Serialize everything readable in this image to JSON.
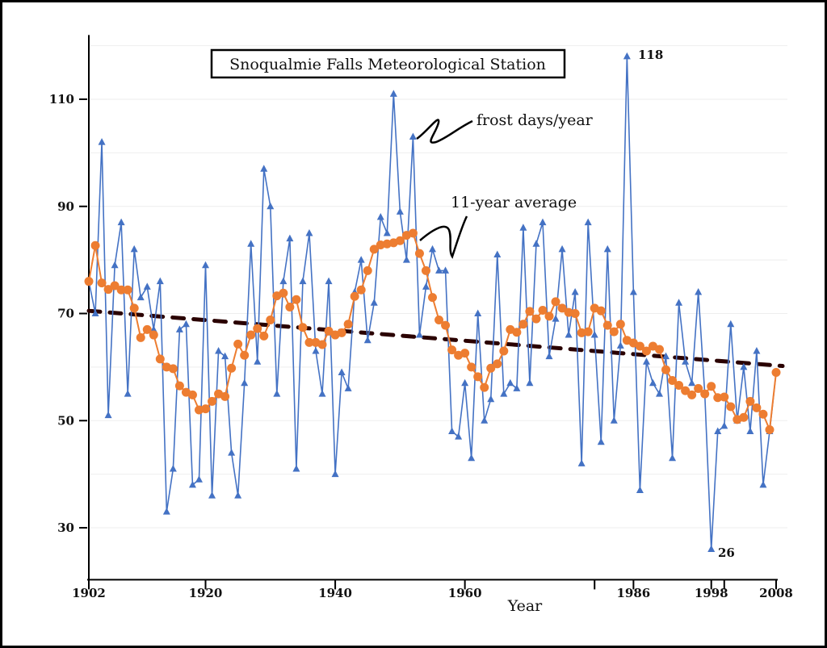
{
  "chart_data": {
    "type": "line",
    "title": "Snoqualmie Falls Meteorological Station",
    "xlabel": "Year",
    "ylabel": "",
    "xlim": [
      1902,
      2008
    ],
    "ylim": [
      20,
      125
    ],
    "x_ticks": [
      1902,
      1920,
      1940,
      1960,
      1986,
      1998,
      2008
    ],
    "y_ticks": [
      30,
      50,
      70,
      90,
      110
    ],
    "grid": true,
    "x_start": 1902,
    "series": [
      {
        "name": "frost days/year",
        "color": "#4472C4",
        "marker": "triangle",
        "values": [
          76,
          70,
          102,
          51,
          79,
          87,
          55,
          82,
          73,
          75,
          67,
          76,
          33,
          41,
          67,
          68,
          38,
          39,
          79,
          36,
          63,
          62,
          44,
          36,
          57,
          83,
          61,
          97,
          90,
          55,
          76,
          84,
          41,
          76,
          85,
          63,
          55,
          76,
          40,
          59,
          56,
          74,
          80,
          65,
          72,
          88,
          85,
          111,
          89,
          80,
          103,
          66,
          75,
          82,
          78,
          78,
          48,
          47,
          57,
          43,
          70,
          50,
          54,
          81,
          55,
          57,
          56,
          86,
          57,
          83,
          87,
          62,
          69,
          82,
          66,
          74,
          42,
          87,
          66,
          46,
          82,
          50,
          64,
          118,
          74,
          37,
          61,
          57,
          55,
          62,
          43,
          72,
          61,
          57,
          74,
          55,
          26,
          48,
          49,
          68,
          50,
          60,
          48,
          63,
          38,
          48,
          59
        ]
      },
      {
        "name": "11-year average",
        "color": "#ED7D31",
        "marker": "circle",
        "values": [
          76,
          82.7,
          75.7,
          74.5,
          75.2,
          74.4,
          74.4,
          71,
          65.5,
          67,
          66,
          61.5,
          60,
          59.7,
          56.5,
          55.3,
          54.8,
          52,
          52.2,
          53.6,
          55,
          54.5,
          59.8,
          64.3,
          62.2,
          66,
          67.2,
          65.8,
          68.8,
          73.3,
          73.8,
          71.2,
          72.6,
          67.4,
          64.6,
          64.6,
          64.2,
          66.7,
          66,
          66.4,
          68,
          73.2,
          74.4,
          78,
          82,
          82.8,
          83,
          83.2,
          83.6,
          84.6,
          85,
          81.2,
          78,
          73,
          68.8,
          67.8,
          63.2,
          62.2,
          62.6,
          60,
          58.2,
          56.2,
          59.8,
          60.6,
          63,
          67,
          66.5,
          68,
          70.4,
          69,
          70.6,
          69.5,
          72.2,
          71,
          70.2,
          70,
          66.4,
          66.6,
          71,
          70.5,
          67.8,
          66.6,
          68,
          65,
          64.5,
          63.9,
          63,
          63.9,
          63.3,
          59.5,
          57.5,
          56.6,
          55.6,
          54.8,
          56,
          55,
          56.4,
          54.3,
          54.4,
          52.6,
          50.2,
          50.6,
          53.6,
          52.4,
          51.2,
          48.3,
          59
        ]
      },
      {
        "name": "trend",
        "color": "#2a0000",
        "style": "dashed",
        "start": [
          1902,
          70.5
        ],
        "end": [
          2008,
          60.2
        ]
      }
    ],
    "annotations": {
      "max_label": "118",
      "min_label": "26",
      "frost_label": "frost days/year",
      "avg_label": "11-year average"
    }
  }
}
